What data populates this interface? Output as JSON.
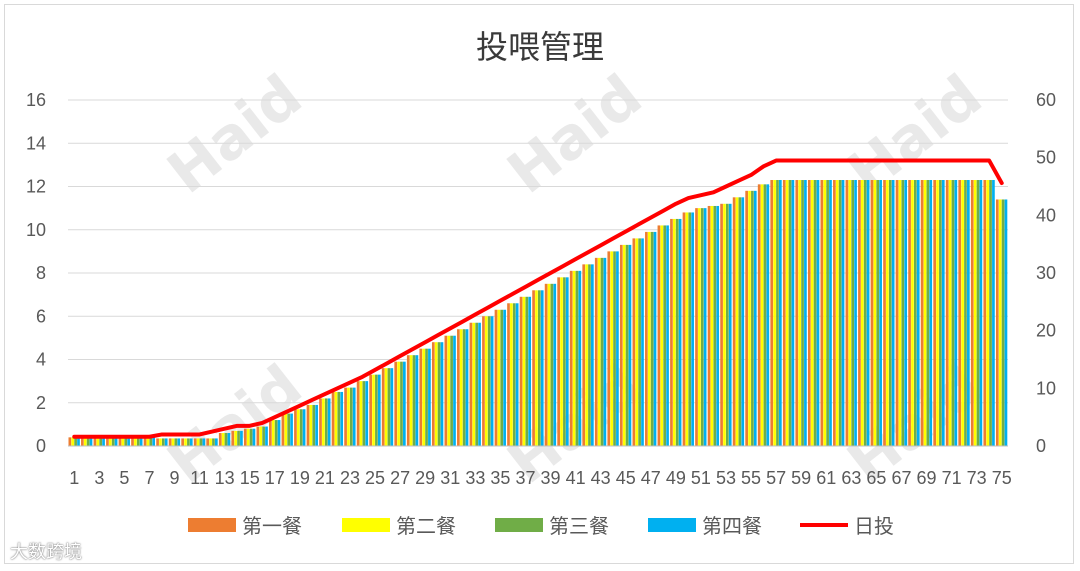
{
  "chart_data": {
    "type": "bar",
    "title": "投喂管理",
    "y_left_range": [
      0,
      16
    ],
    "y_left_ticks": [
      "0",
      "2",
      "4",
      "6",
      "8",
      "10",
      "12",
      "14",
      "16"
    ],
    "y_right_range": [
      0,
      60
    ],
    "y_right_ticks": [
      "0",
      "10",
      "20",
      "30",
      "40",
      "50",
      "60"
    ],
    "x_tick_labels": [
      "1",
      "3",
      "5",
      "7",
      "9",
      "11",
      "13",
      "15",
      "17",
      "19",
      "21",
      "23",
      "25",
      "27",
      "29",
      "31",
      "33",
      "35",
      "37",
      "39",
      "41",
      "43",
      "45",
      "47",
      "49",
      "51",
      "53",
      "55",
      "57",
      "59",
      "61",
      "63",
      "65",
      "67",
      "69",
      "71",
      "73",
      "75"
    ],
    "x_tick_values": [
      1,
      3,
      5,
      7,
      9,
      11,
      13,
      15,
      17,
      19,
      21,
      23,
      25,
      27,
      29,
      31,
      33,
      35,
      37,
      39,
      41,
      43,
      45,
      47,
      49,
      51,
      53,
      55,
      57,
      59,
      61,
      63,
      65,
      67,
      69,
      71,
      73,
      75
    ],
    "days": 75,
    "series": [
      {
        "name": "第一餐",
        "color": "#ED7D31",
        "axis": "left",
        "values": [
          0.4,
          0.4,
          0.4,
          0.4,
          0.4,
          0.4,
          0.4,
          0.35,
          0.35,
          0.35,
          0.35,
          0.35,
          0.6,
          0.7,
          0.8,
          0.9,
          1.2,
          1.5,
          1.7,
          1.9,
          2.2,
          2.5,
          2.7,
          3.0,
          3.3,
          3.6,
          3.9,
          4.2,
          4.5,
          4.8,
          5.1,
          5.4,
          5.7,
          6.0,
          6.3,
          6.6,
          6.9,
          7.2,
          7.5,
          7.8,
          8.1,
          8.4,
          8.7,
          9.0,
          9.3,
          9.6,
          9.9,
          10.2,
          10.5,
          10.8,
          11.0,
          11.1,
          11.2,
          11.5,
          11.8,
          12.1,
          12.3,
          12.3,
          12.3,
          12.3,
          12.3,
          12.3,
          12.3,
          12.3,
          12.3,
          12.3,
          12.3,
          12.3,
          12.3,
          12.3,
          12.3,
          12.3,
          12.3,
          12.3,
          11.4
        ]
      },
      {
        "name": "第二餐",
        "color": "#FFFF00",
        "axis": "left",
        "values": [
          0.4,
          0.4,
          0.4,
          0.4,
          0.4,
          0.4,
          0.4,
          0.35,
          0.35,
          0.35,
          0.35,
          0.35,
          0.6,
          0.7,
          0.8,
          0.9,
          1.2,
          1.5,
          1.7,
          1.9,
          2.2,
          2.5,
          2.7,
          3.0,
          3.3,
          3.6,
          3.9,
          4.2,
          4.5,
          4.8,
          5.1,
          5.4,
          5.7,
          6.0,
          6.3,
          6.6,
          6.9,
          7.2,
          7.5,
          7.8,
          8.1,
          8.4,
          8.7,
          9.0,
          9.3,
          9.6,
          9.9,
          10.2,
          10.5,
          10.8,
          11.0,
          11.1,
          11.2,
          11.5,
          11.8,
          12.1,
          12.3,
          12.3,
          12.3,
          12.3,
          12.3,
          12.3,
          12.3,
          12.3,
          12.3,
          12.3,
          12.3,
          12.3,
          12.3,
          12.3,
          12.3,
          12.3,
          12.3,
          12.3,
          11.4
        ]
      },
      {
        "name": "第三餐",
        "color": "#70AD47",
        "axis": "left",
        "values": [
          0.4,
          0.4,
          0.4,
          0.4,
          0.4,
          0.4,
          0.4,
          0.35,
          0.35,
          0.35,
          0.35,
          0.35,
          0.6,
          0.7,
          0.8,
          0.9,
          1.2,
          1.5,
          1.7,
          1.9,
          2.2,
          2.5,
          2.7,
          3.0,
          3.3,
          3.6,
          3.9,
          4.2,
          4.5,
          4.8,
          5.1,
          5.4,
          5.7,
          6.0,
          6.3,
          6.6,
          6.9,
          7.2,
          7.5,
          7.8,
          8.1,
          8.4,
          8.7,
          9.0,
          9.3,
          9.6,
          9.9,
          10.2,
          10.5,
          10.8,
          11.0,
          11.1,
          11.2,
          11.5,
          11.8,
          12.1,
          12.3,
          12.3,
          12.3,
          12.3,
          12.3,
          12.3,
          12.3,
          12.3,
          12.3,
          12.3,
          12.3,
          12.3,
          12.3,
          12.3,
          12.3,
          12.3,
          12.3,
          12.3,
          11.4
        ]
      },
      {
        "name": "第四餐",
        "color": "#00B0F0",
        "axis": "left",
        "values": [
          0.4,
          0.4,
          0.4,
          0.4,
          0.4,
          0.4,
          0.4,
          0.35,
          0.35,
          0.35,
          0.35,
          0.35,
          0.6,
          0.7,
          0.8,
          0.9,
          1.2,
          1.5,
          1.7,
          1.9,
          2.2,
          2.5,
          2.7,
          3.0,
          3.3,
          3.6,
          3.9,
          4.2,
          4.5,
          4.8,
          5.1,
          5.4,
          5.7,
          6.0,
          6.3,
          6.6,
          6.9,
          7.2,
          7.5,
          7.8,
          8.1,
          8.4,
          8.7,
          9.0,
          9.3,
          9.6,
          9.9,
          10.2,
          10.5,
          10.8,
          11.0,
          11.1,
          11.2,
          11.5,
          11.8,
          12.1,
          12.3,
          12.3,
          12.3,
          12.3,
          12.3,
          12.3,
          12.3,
          12.3,
          12.3,
          12.3,
          12.3,
          12.3,
          12.3,
          12.3,
          12.3,
          12.3,
          12.3,
          12.3,
          11.4
        ]
      },
      {
        "name": "日投",
        "color": "#FF0000",
        "axis": "right",
        "type": "line",
        "values": [
          1.6,
          1.6,
          1.6,
          1.6,
          1.6,
          1.6,
          1.6,
          2.0,
          2.0,
          2.0,
          2.0,
          2.5,
          3.0,
          3.5,
          3.5,
          4.0,
          5.0,
          6.0,
          7.0,
          8.0,
          9.0,
          10.0,
          11.0,
          12.0,
          13.2,
          14.4,
          15.6,
          16.8,
          18.0,
          19.2,
          20.4,
          21.6,
          22.8,
          24.0,
          25.2,
          26.4,
          27.6,
          28.8,
          30.0,
          31.2,
          32.4,
          33.6,
          34.8,
          36.0,
          37.2,
          38.4,
          39.6,
          40.8,
          42.0,
          43.0,
          43.5,
          44.0,
          45.0,
          46.0,
          47.0,
          48.5,
          49.5,
          49.5,
          49.5,
          49.5,
          49.5,
          49.5,
          49.5,
          49.5,
          49.5,
          49.5,
          49.5,
          49.5,
          49.5,
          49.5,
          49.5,
          49.5,
          49.5,
          49.5,
          45.6
        ]
      }
    ],
    "legend_position": "bottom",
    "grid": true
  },
  "watermark": "大数跨境",
  "bg_watermark": "Haid"
}
